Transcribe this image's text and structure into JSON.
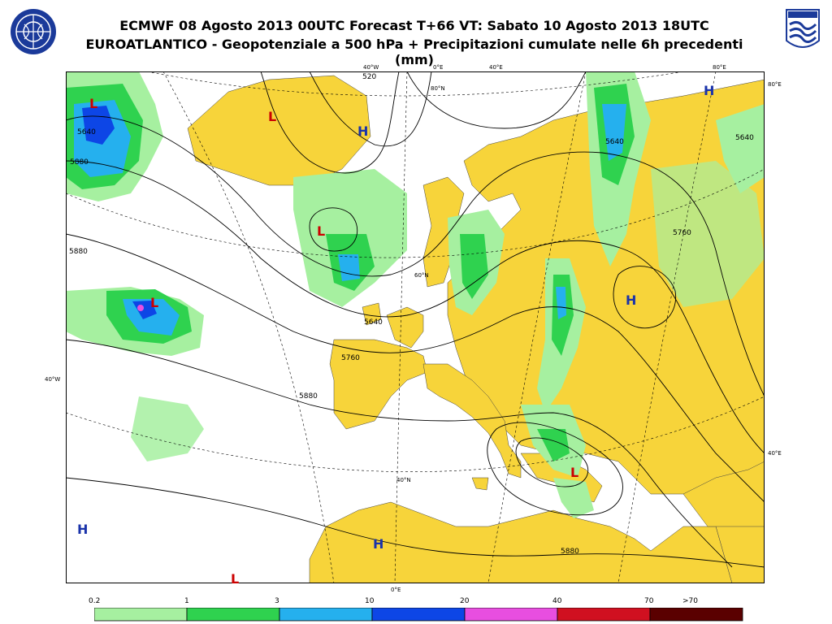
{
  "header": {
    "title_line1": "ECMWF 08 Agosto 2013 00UTC Forecast T+66 VT: Sabato 10 Agosto 2013 18UTC",
    "title_line2": "EUROATLANTICO - Geopotenziale a 500 hPa + Precipitazioni cumulate nelle 6h precedenti (mm)"
  },
  "logos": {
    "left": "organization-emblem-icon",
    "right": "service-shield-icon"
  },
  "grid_labels": {
    "top_w40": "40°W",
    "top_0": "0°E",
    "top_e40": "40°E",
    "top_e80": "80°E",
    "right_80": "80°E",
    "right_40": "40°E",
    "left_40": "40°W",
    "bottom_0": "0°E",
    "lat_80": "80°N",
    "lat_60": "60°N",
    "lat_40": "40°N"
  },
  "contour_labels": [
    "5640",
    "5880",
    "5640",
    "5640",
    "5760",
    "5880",
    "5880",
    "5640",
    "5760",
    "5880",
    "520"
  ],
  "pressure_centers": [
    {
      "type": "L",
      "color": "#cc0000"
    },
    {
      "type": "L",
      "color": "#cc0000"
    },
    {
      "type": "H",
      "color": "#1a33aa"
    },
    {
      "type": "L",
      "color": "#cc0000"
    },
    {
      "type": "L",
      "color": "#cc0000"
    },
    {
      "type": "H",
      "color": "#1a33aa"
    },
    {
      "type": "H",
      "color": "#1a33aa"
    },
    {
      "type": "L",
      "color": "#cc0000"
    },
    {
      "type": "H",
      "color": "#1a33aa"
    },
    {
      "type": "H",
      "color": "#1a33aa"
    },
    {
      "type": "L",
      "color": "#cc0000"
    }
  ],
  "legend": {
    "ticks": [
      "0.2",
      "1",
      "3",
      "10",
      "20",
      "40",
      "70",
      ">70"
    ],
    "colors": [
      "#a6f0a0",
      "#2fd24f",
      "#25b0ee",
      "#0d46e6",
      "#e84ee0",
      "#d01020",
      "#5a0000"
    ]
  }
}
